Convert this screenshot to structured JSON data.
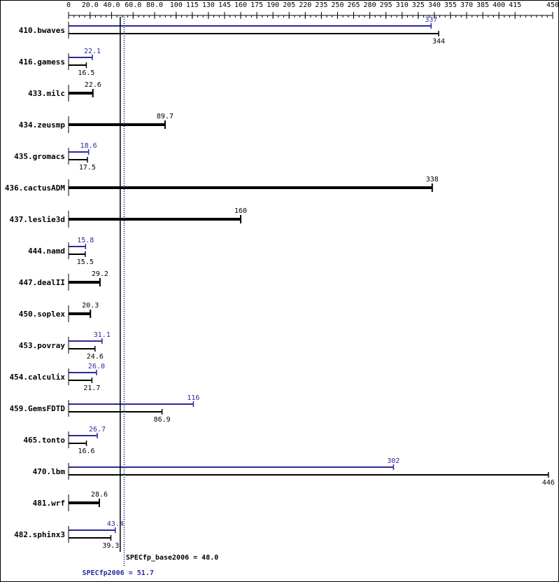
{
  "chart_data": {
    "type": "bar",
    "orientation": "horizontal",
    "categories": [
      "410.bwaves",
      "416.gamess",
      "433.milc",
      "434.zeusmp",
      "435.gromacs",
      "436.cactusADM",
      "437.leslie3d",
      "444.namd",
      "447.dealII",
      "450.soplex",
      "453.povray",
      "454.calculix",
      "459.GemsFDTD",
      "465.tonto",
      "470.lbm",
      "481.wrf",
      "482.sphinx3"
    ],
    "series": [
      {
        "name": "SPECfp2006",
        "color": "#2a2a9c",
        "values": [
          337,
          22.1,
          null,
          null,
          18.6,
          null,
          null,
          15.8,
          null,
          null,
          31.1,
          26.0,
          116,
          26.7,
          302,
          null,
          43.4
        ],
        "value_labels": [
          null,
          null,
          null,
          null,
          null,
          null,
          null,
          null,
          null,
          null,
          null,
          "26.0",
          null,
          null,
          null,
          null,
          null
        ]
      },
      {
        "name": "SPECfp_base2006",
        "color": "#000000",
        "values": [
          344,
          16.5,
          22.6,
          89.7,
          17.5,
          338,
          160,
          15.5,
          29.2,
          20.3,
          24.6,
          21.7,
          86.9,
          16.6,
          446,
          28.6,
          39.3
        ]
      }
    ],
    "xlim": [
      0,
      450
    ],
    "xticks": [
      0,
      {
        "value": 20,
        "label": "20.0"
      },
      {
        "value": 40,
        "label": "40.0"
      },
      {
        "value": 60,
        "label": "60.0"
      },
      {
        "value": 80,
        "label": "80.0"
      },
      100,
      115,
      130,
      145,
      160,
      175,
      190,
      205,
      220,
      235,
      250,
      265,
      280,
      295,
      310,
      325,
      340,
      355,
      370,
      385,
      400,
      415,
      450
    ],
    "reference_lines": [
      {
        "value": 48.0,
        "label": "SPECfp_base2006 = 48.0",
        "color": "#000000",
        "style": "solid"
      },
      {
        "value": 51.7,
        "label": "SPECfp2006 = 51.7",
        "color": "#2a2a9c",
        "style": "dotted"
      }
    ]
  }
}
